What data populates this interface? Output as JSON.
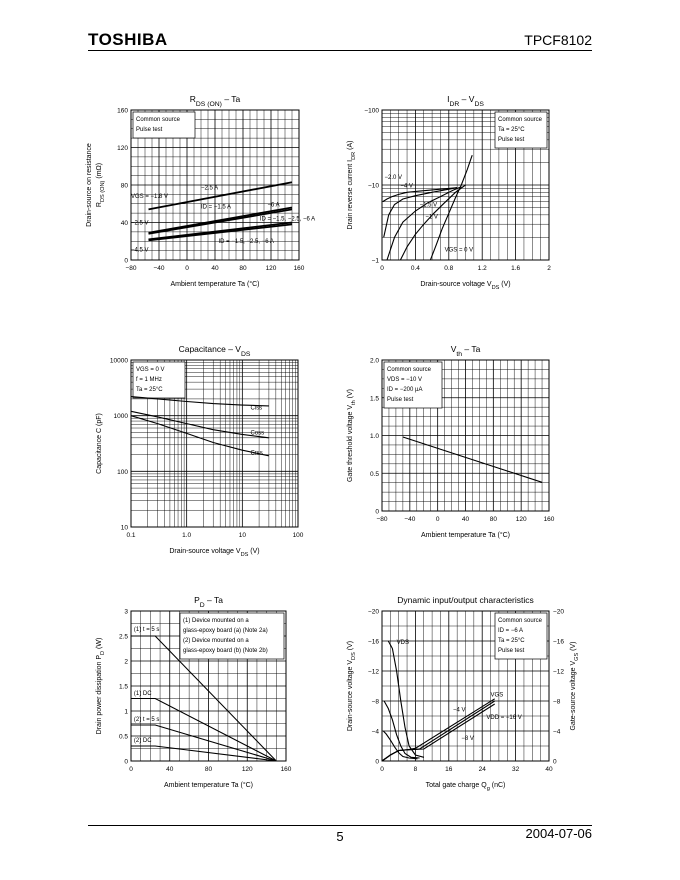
{
  "header": {
    "logo": "TOSHIBA",
    "part_number": "TPCF8102"
  },
  "footer": {
    "page": "5",
    "date": "2004-07-06"
  },
  "chart_data": [
    {
      "id": "rds",
      "type": "line",
      "title": "RDS (ON) – Ta",
      "title_parts": [
        {
          "t": "R"
        },
        {
          "t": "DS (ON)",
          "sub": true
        },
        {
          "t": " – Ta"
        }
      ],
      "xlabel_parts": [
        {
          "t": "Ambient temperature    Ta    (°C)"
        }
      ],
      "ylabel_parts": [
        {
          "t": "Drain-source on resistance"
        }
      ],
      "ylabel2_parts": [
        {
          "t": "R"
        },
        {
          "t": "DS (ON)",
          "sub": true
        },
        {
          "t": "   (mΩ)"
        }
      ],
      "xlim": [
        -80,
        160
      ],
      "ylim": [
        0,
        160
      ],
      "xticks": [
        -80,
        -40,
        0,
        40,
        80,
        120,
        160
      ],
      "yticks": [
        0,
        40,
        80,
        120,
        160
      ],
      "xticklabels": [
        "−80",
        "−40",
        "0",
        "40",
        "80",
        "120",
        "160"
      ],
      "yticklabels": [
        "0",
        "40",
        "80",
        "120",
        "160"
      ],
      "legend": [
        "Common source",
        "Pulse test"
      ],
      "series": [
        {
          "x": [
            -55,
            150
          ],
          "y": [
            54,
            83
          ]
        },
        {
          "x": [
            -55,
            150
          ],
          "y": [
            29,
            56
          ]
        },
        {
          "x": [
            -55,
            150
          ],
          "y": [
            28,
            54
          ]
        },
        {
          "x": [
            -55,
            150
          ],
          "y": [
            22,
            40
          ]
        },
        {
          "x": [
            -55,
            150
          ],
          "y": [
            21,
            38
          ]
        }
      ],
      "annotations": [
        {
          "text": "−2.5 A",
          "x": 20,
          "y": 75,
          "pl": [
            [
              40,
              74
            ],
            [
              25,
              70
            ]
          ]
        },
        {
          "text": "VGS = −1.8 V",
          "x": -80,
          "y": 66
        },
        {
          "text": "ID = −1.5 A",
          "x": 20,
          "y": 55
        },
        {
          "text": "−6 A",
          "x": 115,
          "y": 57
        },
        {
          "text": "−2.5 V",
          "x": -80,
          "y": 38
        },
        {
          "text": "ID = −1.5, −2.5, −6 A",
          "x": 104,
          "y": 42
        },
        {
          "text": "ID = −1.5, −2.5, −6 A",
          "x": 45,
          "y": 18
        },
        {
          "text": "−4.5 V",
          "x": -80,
          "y": 9
        }
      ]
    },
    {
      "id": "idr",
      "type": "line",
      "title": "IDR – VDS",
      "title_parts": [
        {
          "t": "I"
        },
        {
          "t": "DR",
          "sub": true
        },
        {
          "t": " – V"
        },
        {
          "t": "DS",
          "sub": true
        }
      ],
      "xlabel_parts": [
        {
          "t": "Drain-source voltage    V"
        },
        {
          "t": "DS",
          "sub": true
        },
        {
          "t": "    (V)"
        }
      ],
      "ylabel_parts": [
        {
          "t": "Drain reverse current    I"
        },
        {
          "t": "DR",
          "sub": true
        },
        {
          "t": "    (A)"
        }
      ],
      "xlim": [
        0,
        2
      ],
      "ylim_log": [
        1,
        100
      ],
      "xticks": [
        0,
        0.4,
        0.8,
        1.2,
        1.6,
        2
      ],
      "xticklabels": [
        "0",
        "0.4",
        "0.8",
        "1.2",
        "1.6",
        "2"
      ],
      "yticks": [
        1,
        10,
        100
      ],
      "yticklabels": [
        "−1",
        "−10",
        "−100"
      ],
      "legend": [
        "Common source",
        "Ta = 25°C",
        "Pulse test"
      ],
      "series": [
        {
          "x": [
            0.01,
            0.06,
            0.12,
            0.2,
            0.3,
            0.45,
            0.6,
            0.75,
            0.9
          ],
          "y": [
            6,
            6.5,
            7,
            7.5,
            8,
            8.3,
            8.6,
            8.9,
            9.2
          ]
        },
        {
          "x": [
            0.02,
            0.08,
            0.15,
            0.25,
            0.4,
            0.6,
            0.8,
            0.9
          ],
          "y": [
            2,
            4,
            5.5,
            6.5,
            7.2,
            8,
            8.8,
            9.2
          ]
        },
        {
          "x": [
            0.06,
            0.15,
            0.25,
            0.4,
            0.55,
            0.7,
            0.85,
            0.95
          ],
          "y": [
            1,
            2,
            3.2,
            4.5,
            5.8,
            7,
            8.5,
            9.5
          ]
        },
        {
          "x": [
            0.22,
            0.3,
            0.4,
            0.5,
            0.62,
            0.75,
            0.88,
            1.0
          ],
          "y": [
            1,
            1.5,
            2.2,
            3,
            4.2,
            5.8,
            8,
            10
          ]
        },
        {
          "x": [
            0.58,
            0.65,
            0.72,
            0.8,
            0.88,
            0.95,
            1.02,
            1.08
          ],
          "y": [
            1,
            1.6,
            2.6,
            4.2,
            6.8,
            10,
            16,
            25
          ]
        }
      ],
      "annotations": [
        {
          "text": "−2.0 V",
          "x": 0.03,
          "y": 12
        },
        {
          "text": "−4 V",
          "x": 0.22,
          "y": 9.3
        },
        {
          "text": "−1.5 V",
          "x": 0.45,
          "y": 5.2
        },
        {
          "text": "−1 V",
          "x": 0.52,
          "y": 3.6
        },
        {
          "text": "VGS = 0 V",
          "x": 0.75,
          "y": 1.3
        }
      ]
    },
    {
      "id": "cap",
      "type": "line",
      "title": "Capacitance – VDS",
      "title_parts": [
        {
          "t": "Capacitance – V"
        },
        {
          "t": "DS",
          "sub": true
        }
      ],
      "xlabel_parts": [
        {
          "t": "Drain-source voltage    V"
        },
        {
          "t": "DS",
          "sub": true
        },
        {
          "t": "    (V)"
        }
      ],
      "ylabel_parts": [
        {
          "t": "Capacitance    C    (pF)"
        }
      ],
      "xlim_log": [
        0.1,
        100
      ],
      "ylim_log": [
        10,
        10000
      ],
      "xticks": [
        0.1,
        1,
        10,
        100
      ],
      "xticklabels": [
        "0.1",
        "1.0",
        "10",
        "100"
      ],
      "yticks": [
        10,
        100,
        1000,
        10000
      ],
      "yticklabels": [
        "10",
        "100",
        "1000",
        "10000"
      ],
      "legend": [
        "VGS = 0 V",
        "f = 1 MHz",
        "Ta = 25°C"
      ],
      "series": [
        {
          "name": "Ciss",
          "x": [
            0.1,
            0.3,
            1,
            3,
            10,
            30
          ],
          "y": [
            2200,
            2000,
            1800,
            1650,
            1550,
            1500
          ]
        },
        {
          "name": "Coss",
          "x": [
            0.1,
            0.3,
            1,
            3,
            10,
            30
          ],
          "y": [
            1200,
            950,
            720,
            560,
            460,
            400
          ]
        },
        {
          "name": "Crss",
          "x": [
            0.1,
            0.3,
            1,
            3,
            10,
            30
          ],
          "y": [
            1000,
            720,
            480,
            330,
            240,
            190
          ]
        }
      ],
      "annotations": [
        {
          "text": "Ciss",
          "x": 14,
          "y": 1300
        },
        {
          "text": "Coss",
          "x": 14,
          "y": 460
        },
        {
          "text": "Crss",
          "x": 14,
          "y": 200
        }
      ]
    },
    {
      "id": "vth",
      "type": "line",
      "title": "Vth – Ta",
      "title_parts": [
        {
          "t": "V"
        },
        {
          "t": "th",
          "sub": true
        },
        {
          "t": " – Ta"
        }
      ],
      "xlabel_parts": [
        {
          "t": "Ambient temperature    Ta    (°C)"
        }
      ],
      "ylabel_parts": [
        {
          "t": "Gate threshold voltage    V"
        },
        {
          "t": "th",
          "sub": true
        },
        {
          "t": "    (V)"
        }
      ],
      "xlim": [
        -80,
        160
      ],
      "ylim": [
        0,
        2.0
      ],
      "xticks": [
        -80,
        -40,
        0,
        40,
        80,
        120,
        160
      ],
      "xticklabels": [
        "−80",
        "−40",
        "0",
        "40",
        "80",
        "120",
        "160"
      ],
      "yticks": [
        0,
        0.5,
        1.0,
        1.5,
        2.0
      ],
      "yticklabels": [
        "0",
        "0.5",
        "1.0",
        "1.5",
        "2.0"
      ],
      "legend": [
        "Common source",
        "VDS = −10 V",
        "ID = −200 µA",
        "Pulse test"
      ],
      "series": [
        {
          "x": [
            -50,
            150
          ],
          "y": [
            0.98,
            0.38
          ]
        }
      ],
      "annotations": []
    },
    {
      "id": "pd",
      "type": "line",
      "title": "PD – Ta",
      "title_parts": [
        {
          "t": "P"
        },
        {
          "t": "D",
          "sub": true
        },
        {
          "t": " – Ta"
        }
      ],
      "xlabel_parts": [
        {
          "t": "Ambient temperature    Ta    (°C)"
        }
      ],
      "ylabel_parts": [
        {
          "t": "Drain power dissipation    P"
        },
        {
          "t": "D",
          "sub": true
        },
        {
          "t": "    (W)"
        }
      ],
      "xlim": [
        0,
        160
      ],
      "ylim": [
        0,
        3
      ],
      "xticks": [
        0,
        40,
        80,
        120,
        160
      ],
      "xticklabels": [
        "0",
        "40",
        "80",
        "120",
        "160"
      ],
      "yticks": [
        0,
        0.5,
        1,
        1.5,
        2,
        2.5,
        3
      ],
      "yticklabels": [
        "0",
        "0.5",
        "1",
        "1.5",
        "2",
        "2.5",
        "3"
      ],
      "legend": [
        "(1) Device mounted on a",
        "      glass-epoxy board (a) (Note 2a)",
        "(2) Device mounted on a",
        "      glass-epoxy board (b) (Note 2b)"
      ],
      "series": [
        {
          "name": "(1) t = 5 s",
          "x": [
            0,
            25,
            150
          ],
          "y": [
            2.5,
            2.5,
            0
          ]
        },
        {
          "name": "(1) DC",
          "x": [
            0,
            25,
            150
          ],
          "y": [
            1.25,
            1.25,
            0
          ]
        },
        {
          "name": "(2) t = 5 s",
          "x": [
            0,
            25,
            150
          ],
          "y": [
            0.72,
            0.72,
            0
          ]
        },
        {
          "name": "(2) DC",
          "x": [
            0,
            25,
            150
          ],
          "y": [
            0.3,
            0.3,
            0
          ]
        }
      ],
      "annotations": [
        {
          "text": "(1) t = 5 s",
          "x": 3,
          "y": 2.6
        },
        {
          "text": "(1) DC",
          "x": 3,
          "y": 1.32
        },
        {
          "text": "(2) t = 5 s",
          "x": 3,
          "y": 0.8
        },
        {
          "text": "(2) DC",
          "x": 3,
          "y": 0.38
        }
      ]
    },
    {
      "id": "dyn",
      "type": "line",
      "title": "Dynamic input/output characteristics",
      "title_parts": [
        {
          "t": "Dynamic input/output characteristics"
        }
      ],
      "xlabel_parts": [
        {
          "t": "Total gate charge    Q"
        },
        {
          "t": "g",
          "sub": true
        },
        {
          "t": "    (nC)"
        }
      ],
      "ylabel_parts": [
        {
          "t": "Drain-source voltage    V"
        },
        {
          "t": "DS",
          "sub": true
        },
        {
          "t": "    (V)"
        }
      ],
      "ylabel_right_parts": [
        {
          "t": "Gate-source voltage    V"
        },
        {
          "t": "GS",
          "sub": true
        },
        {
          "t": "    (V)"
        }
      ],
      "xlim": [
        0,
        40
      ],
      "ylim": [
        0,
        20
      ],
      "xticks": [
        0,
        8,
        16,
        24,
        32,
        40
      ],
      "xticklabels": [
        "0",
        "8",
        "16",
        "24",
        "32",
        "40"
      ],
      "yticks": [
        0,
        4,
        8,
        12,
        16,
        20
      ],
      "yticklabels": [
        "0",
        "−4",
        "−8",
        "−12",
        "−16",
        "−20"
      ],
      "yticklabels_right": [
        "0",
        "−4",
        "−8",
        "−12",
        "−16",
        "−20"
      ],
      "legend": [
        "Common source",
        "ID = −6 A",
        "Ta = 25°C",
        "Pulse test"
      ],
      "series": [
        {
          "name": "VDS −16 V",
          "x": [
            1.5,
            2.5,
            3.5,
            4.5,
            5.5,
            6.5,
            8,
            10
          ],
          "y": [
            16,
            15,
            12,
            8,
            4.5,
            2,
            0.8,
            0.5
          ]
        },
        {
          "name": "VDS −8 V",
          "x": [
            0.5,
            1.5,
            2.5,
            3.5,
            4.5,
            5.5,
            7,
            9
          ],
          "y": [
            8,
            7,
            5.5,
            3.5,
            2,
            1,
            0.5,
            0.4
          ]
        },
        {
          "name": "VDS −4 V",
          "x": [
            0.3,
            1,
            2,
            3,
            4,
            5,
            6.5,
            8.5
          ],
          "y": [
            4,
            3.6,
            2.8,
            1.9,
            1.1,
            0.6,
            0.4,
            0.3
          ]
        },
        {
          "name": "VGS −4 V",
          "x": [
            0,
            2,
            4,
            6,
            8,
            27
          ],
          "y": [
            0,
            0.8,
            1.4,
            1.5,
            1.7,
            8.3
          ]
        },
        {
          "name": "VGS −8 V",
          "x": [
            0,
            2,
            4,
            6,
            9,
            27
          ],
          "y": [
            0,
            0.8,
            1.4,
            1.5,
            1.6,
            8.0
          ]
        },
        {
          "name": "VGS −16 V",
          "x": [
            0,
            2,
            4,
            6,
            10,
            27
          ],
          "y": [
            0,
            0.8,
            1.4,
            1.5,
            1.6,
            7.6
          ]
        }
      ],
      "annotations": [
        {
          "text": "VDS",
          "x": 3.5,
          "y": 15.6
        },
        {
          "text": "VGS",
          "x": 26,
          "y": 8.6
        },
        {
          "text": "−4 V",
          "x": 17,
          "y": 6.6
        },
        {
          "text": "VDD = −16 V",
          "x": 25,
          "y": 5.6
        },
        {
          "text": "−8 V",
          "x": 19,
          "y": 2.8
        }
      ]
    }
  ]
}
